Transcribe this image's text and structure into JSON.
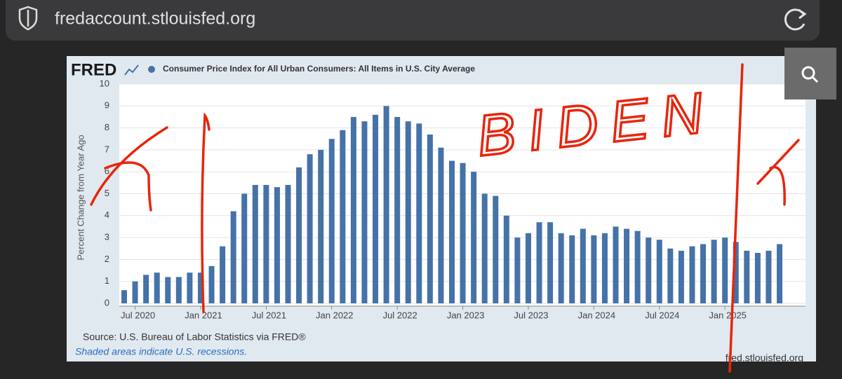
{
  "browser": {
    "url": "fredaccount.stlouisfed.org"
  },
  "logo": "FRED",
  "chart_data": {
    "type": "bar",
    "ylabel": "Percent Change from Year Ago",
    "x": [
      "2020-06",
      "2020-07",
      "2020-08",
      "2020-09",
      "2020-10",
      "2020-11",
      "2020-12",
      "2021-01",
      "2021-02",
      "2021-03",
      "2021-04",
      "2021-05",
      "2021-06",
      "2021-07",
      "2021-08",
      "2021-09",
      "2021-10",
      "2021-11",
      "2021-12",
      "2022-01",
      "2022-02",
      "2022-03",
      "2022-04",
      "2022-05",
      "2022-06",
      "2022-07",
      "2022-08",
      "2022-09",
      "2022-10",
      "2022-11",
      "2022-12",
      "2023-01",
      "2023-02",
      "2023-03",
      "2023-04",
      "2023-05",
      "2023-06",
      "2023-07",
      "2023-08",
      "2023-09",
      "2023-10",
      "2023-11",
      "2023-12",
      "2024-01",
      "2024-02",
      "2024-03",
      "2024-04",
      "2024-05",
      "2024-06",
      "2024-07",
      "2024-08",
      "2024-09",
      "2024-10",
      "2024-11",
      "2024-12",
      "2025-01",
      "2025-02",
      "2025-03",
      "2025-04",
      "2025-05",
      "2025-06"
    ],
    "series": [
      {
        "name": "Consumer Price Index for All Urban Consumers: All Items in U.S. City Average",
        "color": "#4572a7",
        "values": [
          0.6,
          1.0,
          1.3,
          1.4,
          1.2,
          1.2,
          1.4,
          1.4,
          1.7,
          2.6,
          4.2,
          5.0,
          5.4,
          5.4,
          5.3,
          5.4,
          6.2,
          6.8,
          7.0,
          7.5,
          7.9,
          8.5,
          8.3,
          8.6,
          9.0,
          8.5,
          8.3,
          8.2,
          7.7,
          7.1,
          6.5,
          6.4,
          6.0,
          5.0,
          4.9,
          4.0,
          3.0,
          3.2,
          3.7,
          3.7,
          3.2,
          3.1,
          3.4,
          3.1,
          3.2,
          3.5,
          3.4,
          3.3,
          3.0,
          2.9,
          2.5,
          2.4,
          2.6,
          2.7,
          2.9,
          3.0,
          2.8,
          2.4,
          2.3,
          2.4,
          2.7
        ]
      }
    ],
    "ylim": [
      0,
      10
    ],
    "yticks": [
      0,
      1,
      2,
      3,
      4,
      5,
      6,
      7,
      8,
      9,
      10
    ],
    "grid": true,
    "xticks": [
      {
        "value": "2020-07",
        "label": "Jul 2020"
      },
      {
        "value": "2021-01",
        "label": "Jan 2021"
      },
      {
        "value": "2021-07",
        "label": "Jul 2021"
      },
      {
        "value": "2022-01",
        "label": "Jan 2022"
      },
      {
        "value": "2022-07",
        "label": "Jul 2022"
      },
      {
        "value": "2023-01",
        "label": "Jan 2023"
      },
      {
        "value": "2023-07",
        "label": "Jul 2023"
      },
      {
        "value": "2024-01",
        "label": "Jan 2024"
      },
      {
        "value": "2024-07",
        "label": "Jul 2024"
      },
      {
        "value": "2025-01",
        "label": "Jan 2025"
      }
    ],
    "annotations": [
      "BIDEN"
    ]
  },
  "footer": {
    "source": "Source: U.S. Bureau of Labor Statistics via FRED®",
    "note": "Shaded areas indicate U.S. recessions.",
    "site": "fred.stlouisfed.org"
  }
}
